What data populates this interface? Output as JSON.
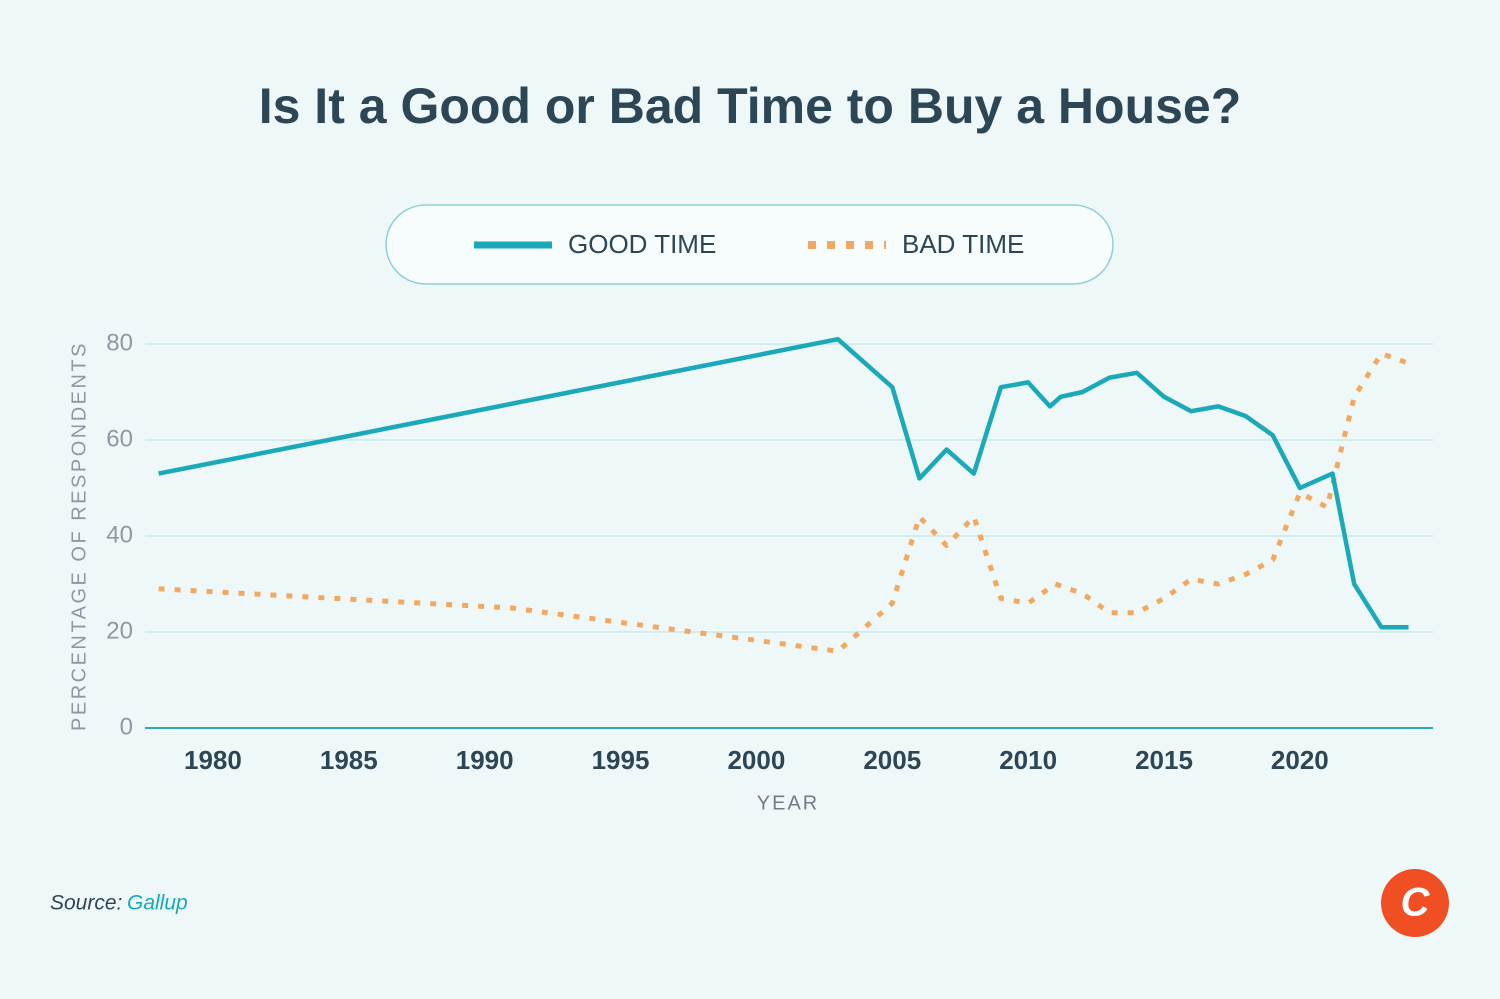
{
  "chart_data": {
    "type": "line",
    "title": "Is It a Good or Bad Time to Buy a House?",
    "x_label": "YEAR",
    "y_label": "PERCENTAGE OF RESPONDENTS",
    "xlim": [
      1977.5,
      2024.9
    ],
    "xticks": [
      1980,
      1985,
      1990,
      1995,
      2000,
      2005,
      2010,
      2015,
      2020
    ],
    "ylim": [
      0,
      80
    ],
    "yticks": [
      0,
      20,
      40,
      60,
      80
    ],
    "grid": true,
    "legend": "top",
    "series": [
      {
        "name": "GOOD TIME",
        "color": "#1aa9b9",
        "dashed": false,
        "x": [
          1978,
          2003,
          2005,
          2006,
          2007,
          2008,
          2009,
          2010,
          2010.8,
          2011.2,
          2012,
          2013,
          2014,
          2015,
          2016,
          2017,
          2018,
          2019,
          2020,
          2021.2,
          2022,
          2023,
          2024
        ],
        "values": [
          53,
          81,
          71,
          52,
          58,
          53,
          71,
          72,
          67,
          69,
          70,
          73,
          74,
          69,
          66,
          67,
          65,
          61,
          50,
          53,
          30,
          21,
          21
        ]
      },
      {
        "name": "BAD TIME",
        "color": "#f2a85e",
        "dashed": true,
        "x": [
          1978,
          1991,
          2003,
          2005,
          2006,
          2007,
          2008,
          2009,
          2010,
          2011,
          2012,
          2013,
          2014,
          2015,
          2016,
          2017,
          2018,
          2019,
          2020,
          2021,
          2022,
          2023,
          2024
        ],
        "values": [
          29,
          25,
          16,
          26,
          44,
          38,
          44,
          27,
          26,
          30,
          28,
          24,
          24,
          27,
          31,
          30,
          32,
          35,
          49,
          46,
          69,
          78,
          76
        ]
      }
    ],
    "source_label": "Source:",
    "source": "Gallup",
    "logo": "C"
  }
}
